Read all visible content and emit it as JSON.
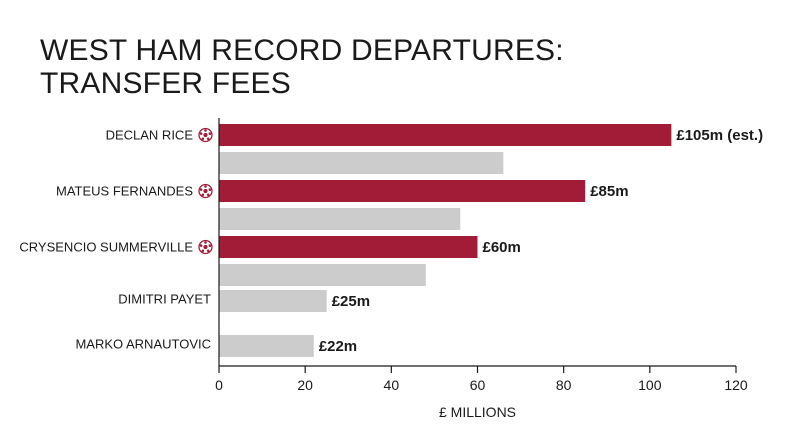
{
  "title_lines": [
    "WEST HAM RECORD DEPARTURES:",
    "TRANSFER FEES"
  ],
  "colors": {
    "highlight": "#a31c37",
    "base": "#cccccc",
    "axis": "#1a1a1a",
    "icon": "#a31c37"
  },
  "chart_data": {
    "type": "bar",
    "orientation": "horizontal",
    "title": "WEST HAM RECORD DEPARTURES: TRANSFER FEES",
    "xlabel": "£ MILLIONS",
    "ylabel": "",
    "xlim": [
      0,
      120
    ],
    "xticks": [
      0,
      20,
      40,
      60,
      80,
      100,
      120
    ],
    "grid": false,
    "categories": [
      "DECLAN RICE",
      "MATEUS FERNANDES",
      "CRYSENCIO SUMMERVILLE",
      "DIMITRI PAYET",
      "MARKO ARNAUTOVIC"
    ],
    "series": [
      {
        "values": [
          105,
          85,
          60,
          null,
          null
        ],
        "color": "#a31c37",
        "labels": [
          "£105m (est.)",
          "£85m",
          "£60m",
          "",
          ""
        ]
      },
      {
        "values": [
          66,
          56,
          48,
          25,
          22
        ],
        "color": "#cccccc",
        "labels": [
          "",
          "",
          "",
          "£25m",
          "£22m"
        ]
      }
    ],
    "icons": [
      "football-icon",
      "football-icon",
      "football-icon",
      null,
      null
    ]
  }
}
